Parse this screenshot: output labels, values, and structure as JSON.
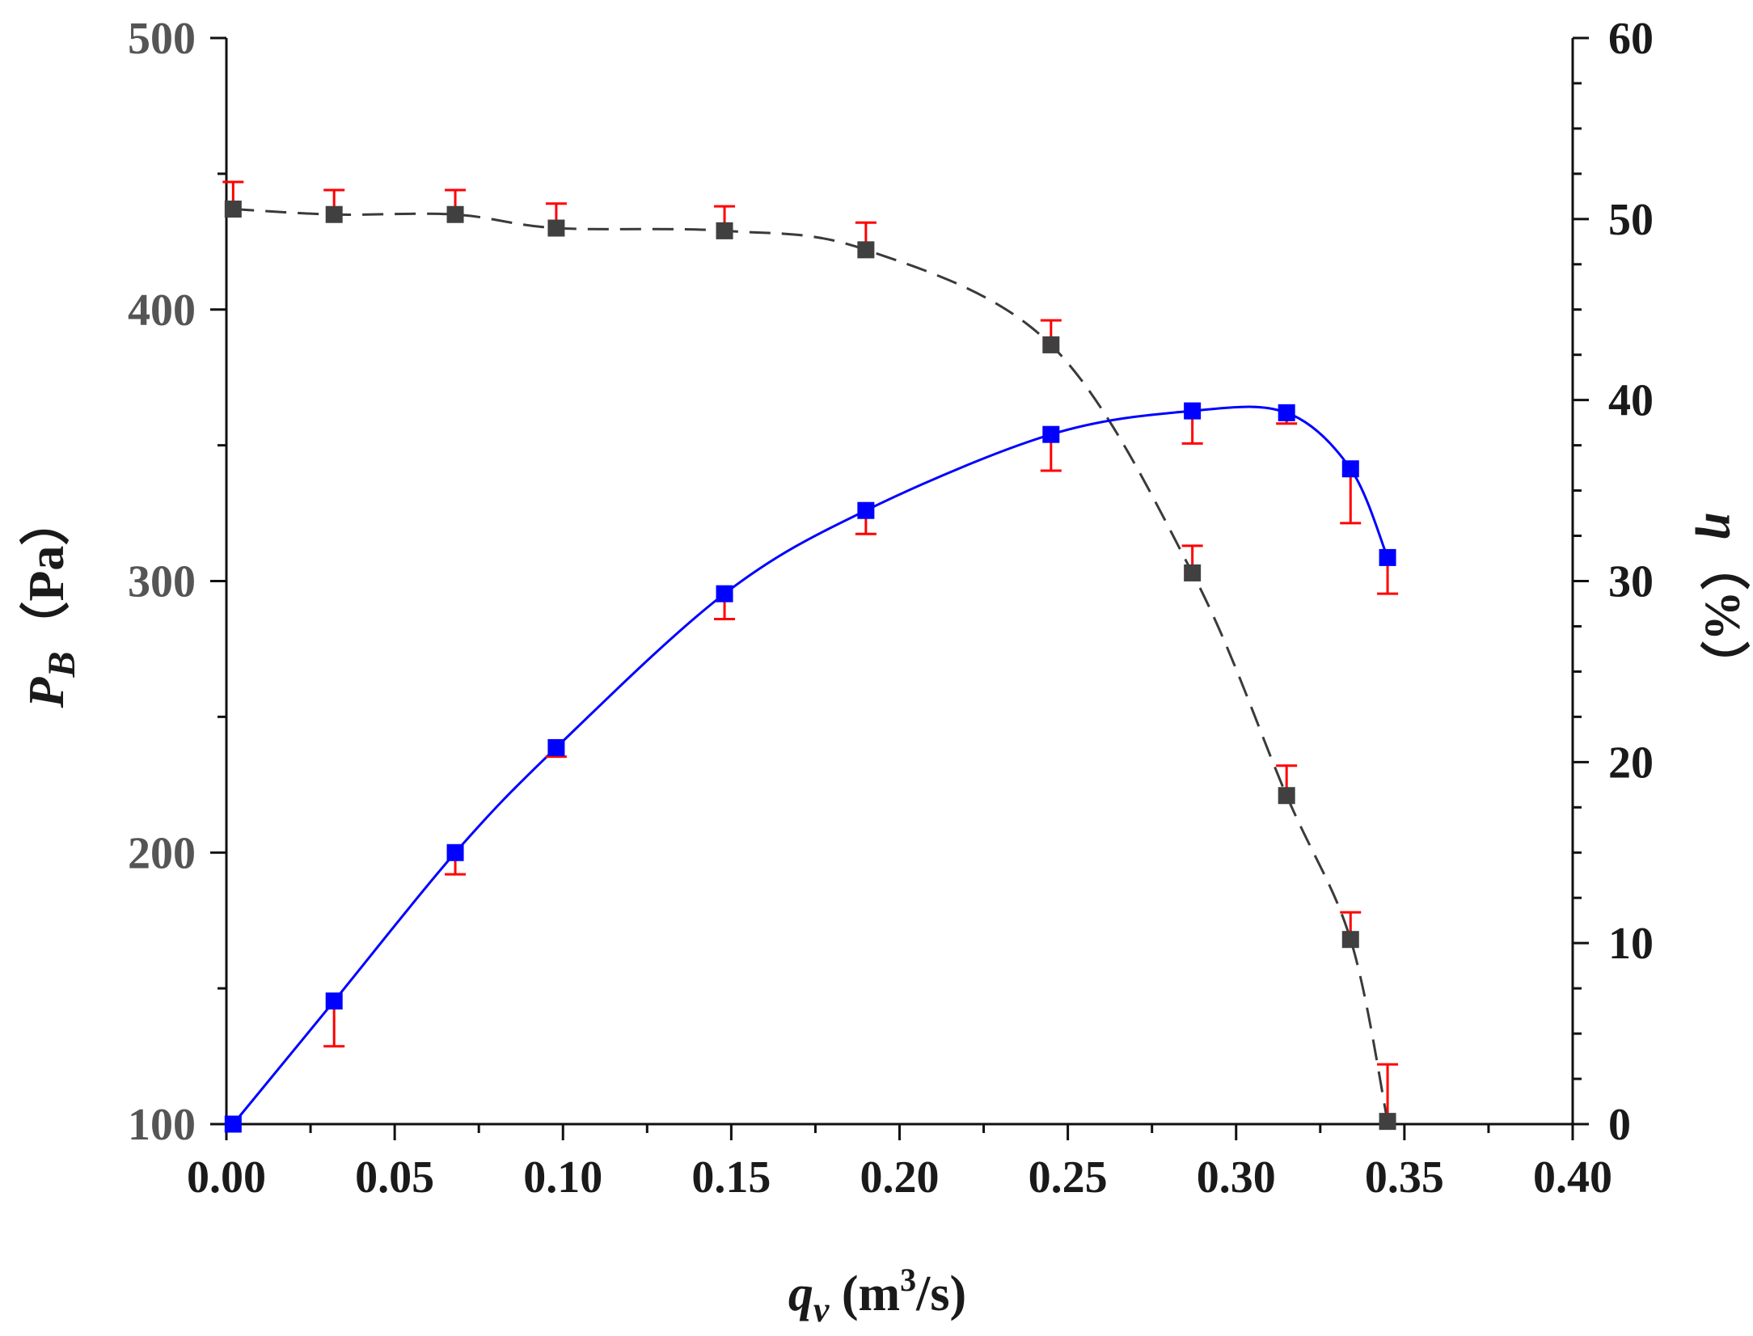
{
  "chart_data": {
    "type": "line",
    "title": "",
    "xlabel": {
      "symbol": "q",
      "subscript": "v",
      "unit_prefix": " (m",
      "superscript": "3",
      "unit_suffix": "/s)"
    },
    "ylabel_left": {
      "symbol": "P",
      "subscript": "B",
      "unit": "（Pa）"
    },
    "ylabel_right": {
      "symbol": "η",
      "unit": "（%）"
    },
    "xlim": [
      0,
      0.4
    ],
    "ylim_left": [
      100,
      500
    ],
    "ylim_right": [
      0,
      60
    ],
    "x_ticks": [
      "0.00",
      "0.05",
      "0.10",
      "0.15",
      "0.20",
      "0.25",
      "0.30",
      "0.35",
      "0.40"
    ],
    "y_left_ticks": [
      "100",
      "200",
      "300",
      "400",
      "500"
    ],
    "y_right_ticks": [
      "0",
      "10",
      "20",
      "30",
      "40",
      "50",
      "60"
    ],
    "grid": false,
    "legend": "none",
    "series": [
      {
        "name": "P_B",
        "axis": "left",
        "style": "dashed",
        "line_color": "#3a3a3a",
        "marker_color": "#404040",
        "error_color": "#ff0000",
        "x": [
          0.002,
          0.032,
          0.068,
          0.098,
          0.148,
          0.19,
          0.245,
          0.287,
          0.315,
          0.334,
          0.345
        ],
        "y": [
          437,
          435,
          435,
          430,
          429,
          422,
          387,
          303,
          221,
          168,
          101
        ],
        "err_up": [
          10,
          9,
          9,
          9,
          9,
          10,
          9,
          10,
          11,
          10,
          21
        ]
      },
      {
        "name": "η",
        "axis": "right",
        "style": "solid",
        "line_color": "#0000ff",
        "marker_color": "#0000ff",
        "error_color": "#ff0000",
        "x": [
          0.002,
          0.032,
          0.068,
          0.098,
          0.148,
          0.19,
          0.245,
          0.287,
          0.315,
          0.334,
          0.345
        ],
        "y": [
          0,
          6.8,
          15,
          20.8,
          29.3,
          33.9,
          38.1,
          39.4,
          39.3,
          36.2,
          31.3
        ],
        "err_down": [
          0,
          2.5,
          1.2,
          0.5,
          1.4,
          1.3,
          2.0,
          1.8,
          0.6,
          3.0,
          2.0
        ]
      }
    ]
  }
}
